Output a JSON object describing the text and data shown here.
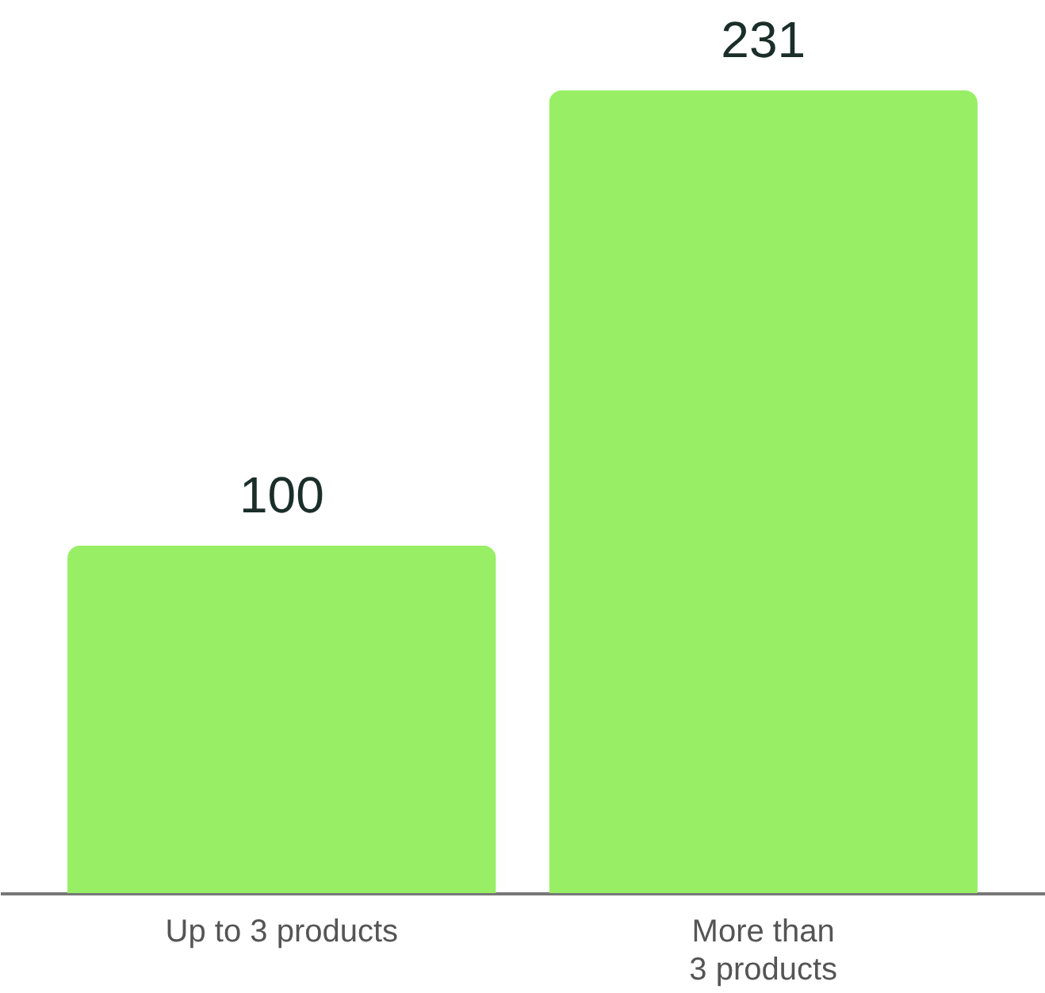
{
  "chart_data": {
    "type": "bar",
    "categories": [
      "Up to 3 products",
      "More than\n3 products"
    ],
    "values": [
      100,
      231
    ],
    "color": "#98ef66",
    "data_labels": true
  }
}
